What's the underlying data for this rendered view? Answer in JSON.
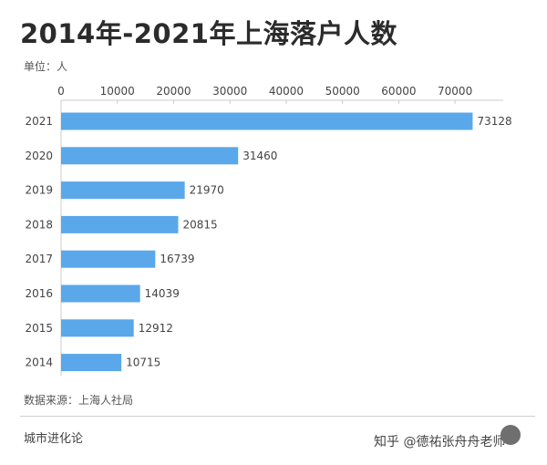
{
  "header": {
    "title": "2014年-2021年上海落户人数",
    "unit_label": "单位：人"
  },
  "footer": {
    "source": "数据来源：上海人社局",
    "brand": "城市进化论",
    "zhihu": "知乎 @德祐张舟舟老师"
  },
  "colors": {
    "bar": "#5aa8ea",
    "axis": "#cccccc",
    "text": "#444444"
  },
  "chart_data": {
    "type": "bar",
    "orientation": "horizontal",
    "categories": [
      "2021",
      "2020",
      "2019",
      "2018",
      "2017",
      "2016",
      "2015",
      "2014"
    ],
    "values": [
      73128,
      31460,
      21970,
      20815,
      16739,
      14039,
      12912,
      10715
    ],
    "x_ticks": [
      0,
      10000,
      20000,
      30000,
      40000,
      50000,
      60000,
      70000
    ],
    "xlim": [
      0,
      75000
    ],
    "x_axis_position": "top",
    "title": "2014年-2021年上海落户人数",
    "xlabel": "",
    "ylabel": "",
    "grid": false,
    "data_labels": true
  }
}
